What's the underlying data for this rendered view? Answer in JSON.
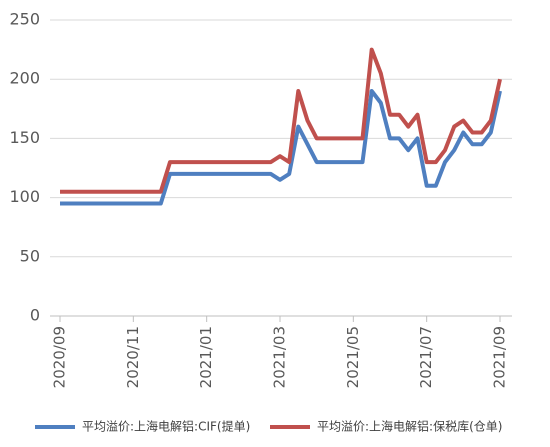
{
  "chart_data": {
    "type": "line",
    "categories": [
      "2020/09",
      null,
      null,
      null,
      null,
      null,
      null,
      null,
      "2020/11",
      null,
      null,
      null,
      null,
      null,
      null,
      null,
      "2021/01",
      null,
      null,
      null,
      null,
      null,
      null,
      null,
      "2021/03",
      null,
      null,
      null,
      null,
      null,
      null,
      null,
      "2021/05",
      null,
      null,
      null,
      null,
      null,
      null,
      null,
      "2021/07",
      null,
      null,
      null,
      null,
      null,
      null,
      null,
      "2021/09"
    ],
    "series": [
      {
        "name": "平均溢价:上海电解铝:CIF(提单)",
        "color": "#4f7fc0",
        "values": [
          95,
          95,
          95,
          95,
          95,
          95,
          95,
          95,
          95,
          95,
          95,
          95,
          120,
          120,
          120,
          120,
          120,
          120,
          120,
          120,
          120,
          120,
          120,
          120,
          115,
          120,
          160,
          145,
          130,
          130,
          130,
          130,
          130,
          130,
          190,
          180,
          150,
          150,
          140,
          150,
          110,
          110,
          130,
          140,
          155,
          145,
          145,
          155,
          190
        ]
      },
      {
        "name": "平均溢价:上海电解铝:保税库(仓单)",
        "color": "#c0504d",
        "values": [
          105,
          105,
          105,
          105,
          105,
          105,
          105,
          105,
          105,
          105,
          105,
          105,
          130,
          130,
          130,
          130,
          130,
          130,
          130,
          130,
          130,
          130,
          130,
          130,
          135,
          130,
          190,
          165,
          150,
          150,
          150,
          150,
          150,
          150,
          225,
          205,
          170,
          170,
          160,
          170,
          130,
          130,
          140,
          160,
          165,
          155,
          155,
          165,
          200
        ]
      }
    ],
    "ylim": [
      0,
      250
    ],
    "yticks": [
      0,
      50,
      100,
      150,
      200,
      250
    ],
    "grid": true
  }
}
